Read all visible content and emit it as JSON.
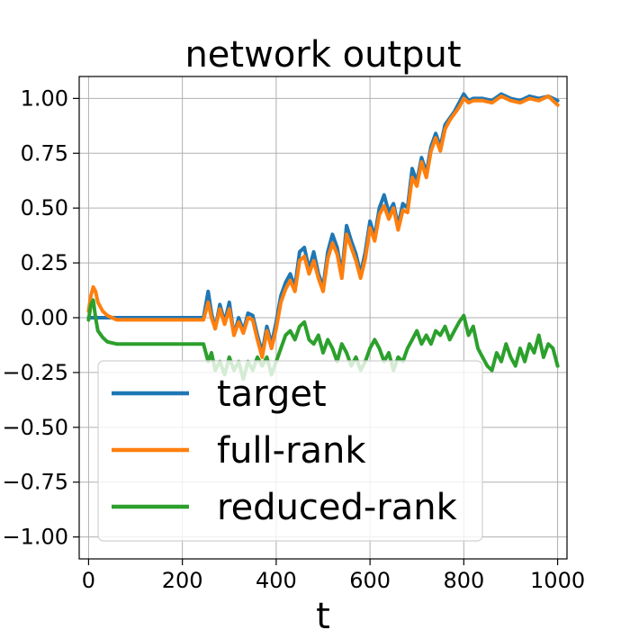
{
  "chart_data": {
    "type": "line",
    "title": "network output",
    "xlabel": "t",
    "ylabel": "",
    "xlim": [
      -20,
      1020
    ],
    "ylim": [
      -1.1,
      1.1
    ],
    "xticks": [
      0,
      200,
      400,
      600,
      800,
      1000
    ],
    "xtick_labels": [
      "0",
      "200",
      "400",
      "600",
      "800",
      "1000"
    ],
    "yticks": [
      -1.0,
      -0.75,
      -0.5,
      -0.25,
      0.0,
      0.25,
      0.5,
      0.75,
      1.0
    ],
    "ytick_labels": [
      "−1.00",
      "−0.75",
      "−0.50",
      "−0.25",
      "0.00",
      "0.25",
      "0.50",
      "0.75",
      "1.00"
    ],
    "grid": true,
    "legend_position": "lower-left",
    "series": [
      {
        "name": "target",
        "color": "#1f77b4",
        "x": [
          0,
          20,
          60,
          100,
          150,
          200,
          245,
          255,
          262,
          270,
          280,
          290,
          300,
          310,
          320,
          330,
          340,
          350,
          360,
          370,
          380,
          390,
          400,
          410,
          420,
          430,
          440,
          450,
          460,
          470,
          480,
          490,
          500,
          510,
          520,
          530,
          540,
          550,
          560,
          570,
          580,
          590,
          600,
          610,
          620,
          630,
          640,
          650,
          660,
          670,
          680,
          690,
          700,
          710,
          720,
          730,
          740,
          750,
          760,
          770,
          780,
          790,
          800,
          810,
          820,
          840,
          860,
          880,
          900,
          920,
          940,
          960,
          980,
          1000
        ],
        "y": [
          0.0,
          0.0,
          0.0,
          0.0,
          0.0,
          0.0,
          0.0,
          0.12,
          0.02,
          -0.05,
          0.06,
          -0.02,
          0.07,
          -0.08,
          0.0,
          -0.06,
          0.02,
          0.01,
          -0.08,
          -0.16,
          -0.04,
          -0.12,
          -0.02,
          0.1,
          0.16,
          0.2,
          0.14,
          0.3,
          0.32,
          0.22,
          0.3,
          0.2,
          0.14,
          0.3,
          0.38,
          0.32,
          0.2,
          0.42,
          0.35,
          0.29,
          0.2,
          0.3,
          0.44,
          0.37,
          0.5,
          0.56,
          0.48,
          0.52,
          0.42,
          0.52,
          0.5,
          0.68,
          0.62,
          0.73,
          0.66,
          0.78,
          0.84,
          0.78,
          0.88,
          0.91,
          0.94,
          0.98,
          1.02,
          0.99,
          1.0,
          1.0,
          0.99,
          1.02,
          1.0,
          0.99,
          1.01,
          1.0,
          1.01,
          0.99
        ]
      },
      {
        "name": "full-rank",
        "color": "#ff7f0e",
        "x": [
          0,
          5,
          10,
          15,
          20,
          30,
          40,
          50,
          60,
          100,
          150,
          200,
          245,
          255,
          262,
          270,
          280,
          290,
          300,
          310,
          320,
          330,
          340,
          350,
          360,
          370,
          380,
          390,
          400,
          410,
          420,
          430,
          440,
          450,
          460,
          470,
          480,
          490,
          500,
          510,
          520,
          530,
          540,
          550,
          560,
          570,
          580,
          590,
          600,
          610,
          620,
          630,
          640,
          650,
          660,
          670,
          680,
          690,
          700,
          710,
          720,
          730,
          740,
          750,
          760,
          770,
          780,
          790,
          800,
          810,
          820,
          840,
          860,
          880,
          900,
          920,
          940,
          960,
          980,
          1000
        ],
        "y": [
          0.03,
          0.1,
          0.14,
          0.12,
          0.07,
          0.03,
          0.01,
          0.0,
          -0.01,
          -0.01,
          -0.01,
          -0.01,
          -0.01,
          0.07,
          0.0,
          -0.05,
          0.04,
          -0.03,
          0.04,
          -0.08,
          -0.02,
          -0.07,
          0.0,
          -0.01,
          -0.1,
          -0.18,
          -0.06,
          -0.14,
          -0.05,
          0.07,
          0.13,
          0.17,
          0.12,
          0.26,
          0.28,
          0.2,
          0.26,
          0.18,
          0.12,
          0.27,
          0.34,
          0.29,
          0.18,
          0.38,
          0.32,
          0.26,
          0.18,
          0.27,
          0.41,
          0.35,
          0.47,
          0.51,
          0.45,
          0.5,
          0.4,
          0.49,
          0.48,
          0.64,
          0.6,
          0.71,
          0.64,
          0.76,
          0.82,
          0.76,
          0.86,
          0.9,
          0.93,
          0.96,
          1.0,
          0.98,
          0.99,
          0.99,
          0.98,
          1.01,
          0.99,
          0.98,
          1.0,
          0.99,
          1.01,
          0.97
        ]
      },
      {
        "name": "reduced-rank",
        "color": "#2ca02c",
        "x": [
          0,
          5,
          10,
          15,
          20,
          30,
          40,
          60,
          100,
          150,
          200,
          245,
          255,
          262,
          270,
          280,
          290,
          300,
          310,
          320,
          330,
          340,
          350,
          360,
          370,
          380,
          390,
          400,
          410,
          420,
          430,
          440,
          450,
          460,
          470,
          480,
          490,
          500,
          510,
          520,
          530,
          540,
          550,
          560,
          570,
          580,
          590,
          600,
          610,
          620,
          630,
          640,
          650,
          660,
          670,
          680,
          690,
          700,
          710,
          720,
          730,
          740,
          750,
          760,
          770,
          780,
          790,
          800,
          810,
          820,
          830,
          840,
          850,
          860,
          870,
          880,
          890,
          900,
          910,
          920,
          930,
          940,
          950,
          960,
          970,
          980,
          990,
          1000
        ],
        "y": [
          -0.01,
          0.06,
          0.08,
          0.0,
          -0.06,
          -0.09,
          -0.11,
          -0.12,
          -0.12,
          -0.12,
          -0.12,
          -0.12,
          -0.2,
          -0.16,
          -0.24,
          -0.2,
          -0.26,
          -0.18,
          -0.24,
          -0.2,
          -0.28,
          -0.2,
          -0.24,
          -0.18,
          -0.22,
          -0.18,
          -0.26,
          -0.2,
          -0.14,
          -0.08,
          -0.06,
          -0.1,
          -0.04,
          -0.02,
          -0.1,
          -0.12,
          -0.08,
          -0.16,
          -0.1,
          -0.14,
          -0.2,
          -0.12,
          -0.16,
          -0.22,
          -0.18,
          -0.24,
          -0.2,
          -0.14,
          -0.1,
          -0.14,
          -0.2,
          -0.16,
          -0.24,
          -0.18,
          -0.2,
          -0.14,
          -0.1,
          -0.06,
          -0.12,
          -0.08,
          -0.12,
          -0.06,
          -0.08,
          -0.04,
          -0.1,
          -0.06,
          -0.02,
          0.01,
          -0.08,
          -0.04,
          -0.14,
          -0.18,
          -0.22,
          -0.24,
          -0.16,
          -0.2,
          -0.12,
          -0.18,
          -0.22,
          -0.14,
          -0.2,
          -0.12,
          -0.16,
          -0.08,
          -0.18,
          -0.12,
          -0.14,
          -0.22
        ]
      }
    ]
  }
}
